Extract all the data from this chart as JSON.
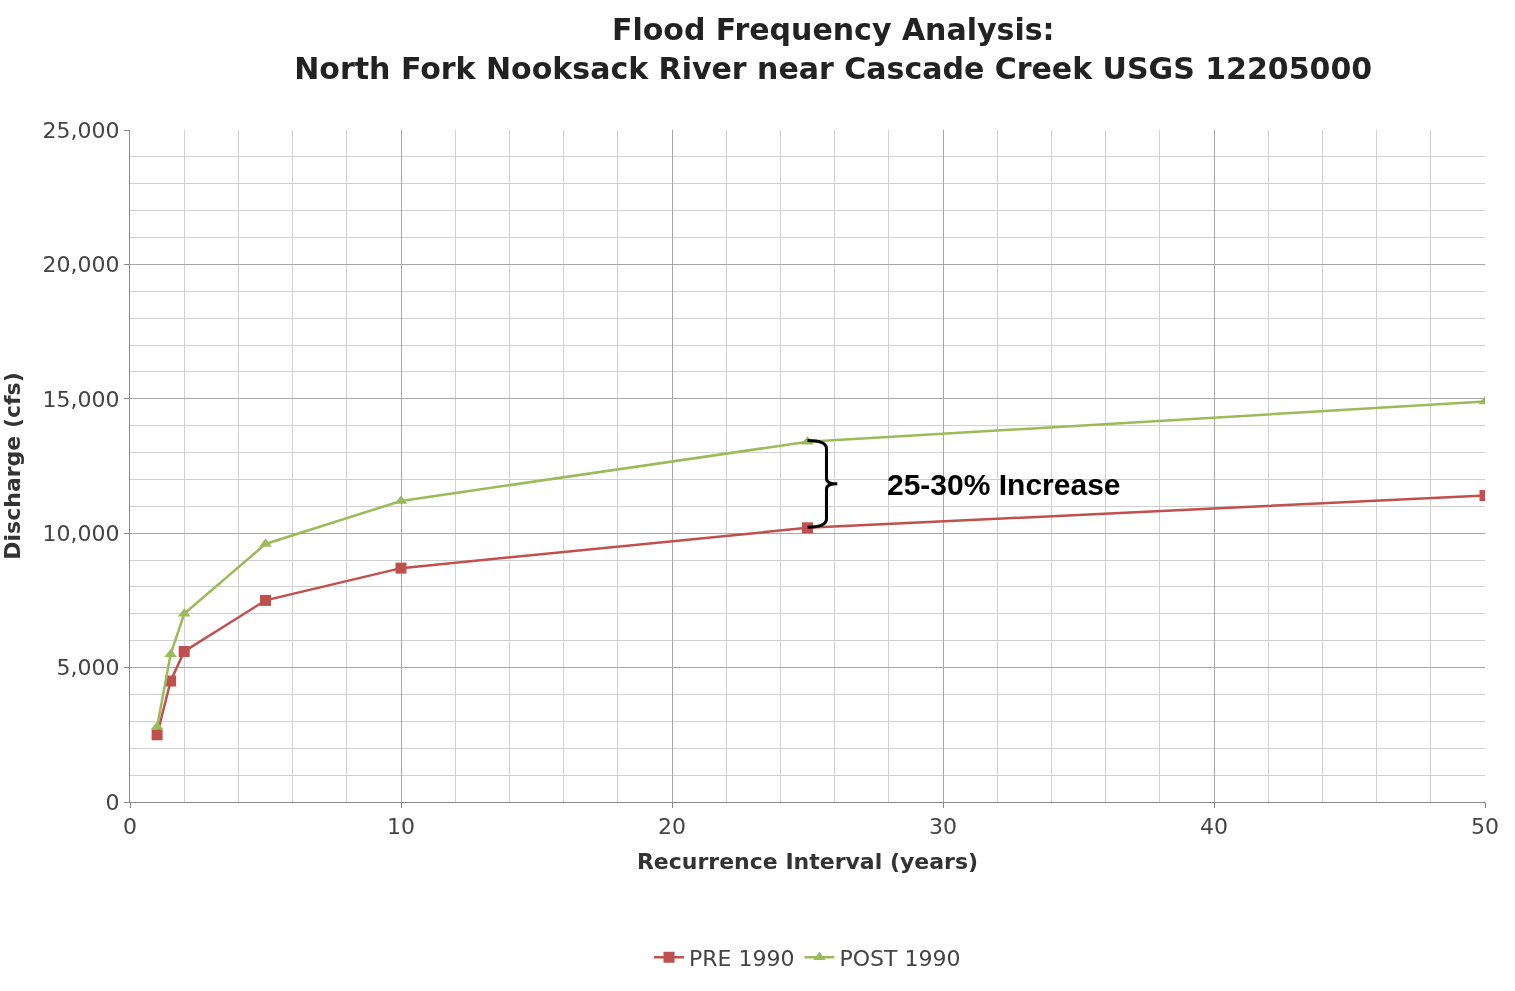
{
  "chart_data": {
    "type": "line",
    "title": "Flood Frequency Analysis:\nNorth Fork Nooksack River near Cascade Creek USGS 12205000",
    "xlabel": "Recurrence Interval (years)",
    "ylabel": "Discharge (cfs)",
    "x": [
      1,
      1.5,
      2,
      5,
      10,
      25,
      50
    ],
    "series": [
      {
        "name": "PRE 1990",
        "color": "#c0504d",
        "marker": "square",
        "values": [
          2500,
          4500,
          5600,
          7500,
          8700,
          10200,
          11400
        ]
      },
      {
        "name": "POST 1990",
        "color": "#9bbb59",
        "marker": "triangle",
        "values": [
          2800,
          5500,
          7000,
          9600,
          11200,
          13400,
          14900
        ]
      }
    ],
    "xlim": [
      0,
      50
    ],
    "xticks": [
      0,
      10,
      20,
      30,
      40,
      50
    ],
    "ylim": [
      0,
      25000
    ],
    "yticks": [
      {
        "value": 0,
        "label": "0"
      },
      {
        "value": 5000,
        "label": "5,000"
      },
      {
        "value": 10000,
        "label": "10,000"
      },
      {
        "value": 15000,
        "label": "15,000"
      },
      {
        "value": 20000,
        "label": "20,000"
      },
      {
        "value": 25000,
        "label": "25,000"
      }
    ],
    "grid": true,
    "legend": "bottom",
    "annotations": [
      "25-30% Increase"
    ]
  }
}
